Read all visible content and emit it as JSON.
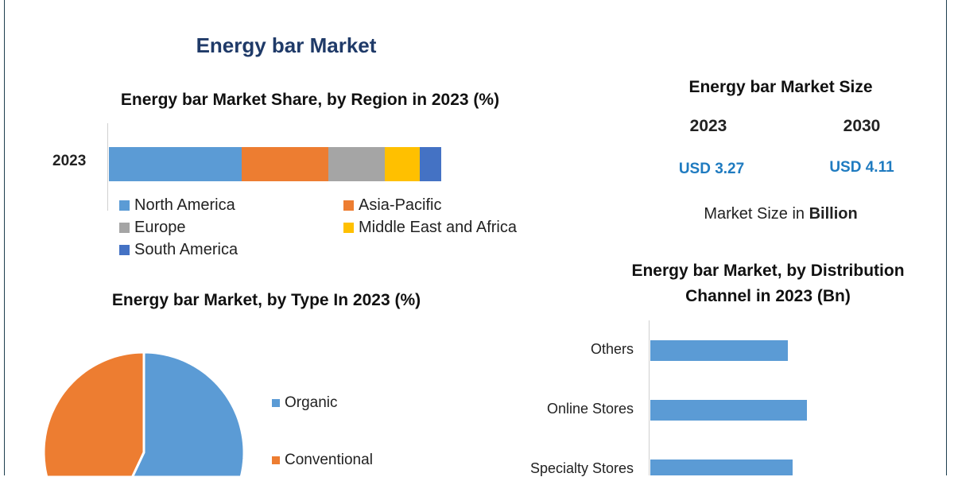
{
  "title": "Energy bar Market",
  "colors": {
    "blue": "#5b9bd5",
    "orange": "#ed7d31",
    "gray": "#a5a5a5",
    "yellow": "#ffc000",
    "darkblue": "#4472c4",
    "accent": "#1f7bc0",
    "title": "#1f3a68"
  },
  "market_size": {
    "title": "Energy bar Market Size",
    "years": [
      "2023",
      "2030"
    ],
    "values": [
      "USD 3.27",
      "USD 4.11"
    ],
    "note_prefix": "Market Size in ",
    "note_unit": "Billion"
  },
  "chart_data": [
    {
      "type": "bar",
      "orientation": "horizontal-stacked",
      "title": "Energy bar Market Share, by Region in 2023 (%)",
      "categories": [
        "2023"
      ],
      "series": [
        {
          "name": "North America",
          "values": [
            40
          ],
          "color": "#5b9bd5"
        },
        {
          "name": "Asia-Pacific",
          "values": [
            26
          ],
          "color": "#ed7d31"
        },
        {
          "name": "Europe",
          "values": [
            17
          ],
          "color": "#a5a5a5"
        },
        {
          "name": "Middle East and Africa",
          "values": [
            10.5
          ],
          "color": "#ffc000"
        },
        {
          "name": "South America",
          "values": [
            6.5
          ],
          "color": "#4472c4"
        }
      ],
      "legend": "bottom"
    },
    {
      "type": "pie",
      "title": "Energy bar Market, by Type In 2023 (%)",
      "slices": [
        {
          "name": "Organic",
          "value": 57,
          "color": "#5b9bd5"
        },
        {
          "name": "Conventional",
          "value": 43,
          "color": "#ed7d31"
        }
      ],
      "legend": "right"
    },
    {
      "type": "bar",
      "orientation": "horizontal",
      "title": "Energy bar Market, by Distribution Channel in 2023 (Bn)",
      "categories": [
        "Others",
        "Online Stores",
        "Specialty Stores"
      ],
      "values": [
        0.88,
        1.0,
        0.91
      ],
      "color": "#5b9bd5"
    }
  ]
}
